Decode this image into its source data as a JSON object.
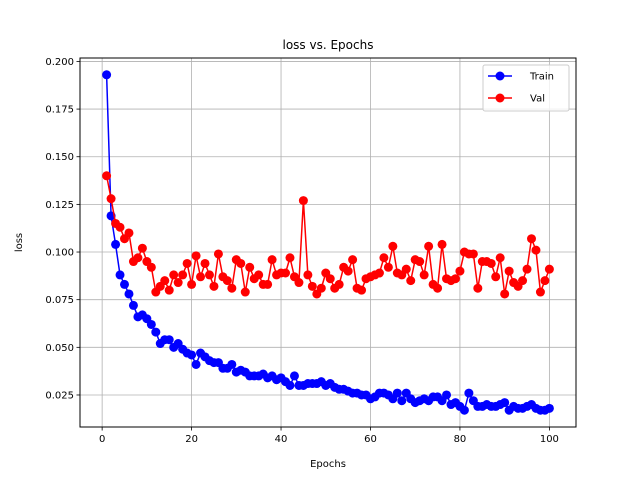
{
  "chart_data": {
    "type": "line",
    "title": "loss vs. Epochs",
    "xlabel": "Epochs",
    "ylabel": "loss",
    "xlim": [
      -4.95,
      105.95
    ],
    "ylim": [
      0.0082,
      0.2018
    ],
    "xticks": [
      0,
      20,
      40,
      60,
      80,
      100
    ],
    "yticks": [
      0.025,
      0.05,
      0.075,
      0.1,
      0.125,
      0.15,
      0.175,
      0.2
    ],
    "ytick_labels": [
      "0.025",
      "0.050",
      "0.075",
      "0.100",
      "0.125",
      "0.150",
      "0.175",
      "0.200"
    ],
    "grid": true,
    "legend_position": "top-right",
    "x": [
      1,
      2,
      3,
      4,
      5,
      6,
      7,
      8,
      9,
      10,
      11,
      12,
      13,
      14,
      15,
      16,
      17,
      18,
      19,
      20,
      21,
      22,
      23,
      24,
      25,
      26,
      27,
      28,
      29,
      30,
      31,
      32,
      33,
      34,
      35,
      36,
      37,
      38,
      39,
      40,
      41,
      42,
      43,
      44,
      45,
      46,
      47,
      48,
      49,
      50,
      51,
      52,
      53,
      54,
      55,
      56,
      57,
      58,
      59,
      60,
      61,
      62,
      63,
      64,
      65,
      66,
      67,
      68,
      69,
      70,
      71,
      72,
      73,
      74,
      75,
      76,
      77,
      78,
      79,
      80,
      81,
      82,
      83,
      84,
      85,
      86,
      87,
      88,
      89,
      90,
      91,
      92,
      93,
      94,
      95,
      96,
      97,
      98,
      99,
      100
    ],
    "series": [
      {
        "name": "Train",
        "color": "#0000ff",
        "values": [
          0.193,
          0.119,
          0.104,
          0.088,
          0.083,
          0.078,
          0.072,
          0.066,
          0.067,
          0.065,
          0.062,
          0.058,
          0.052,
          0.054,
          0.054,
          0.05,
          0.052,
          0.049,
          0.047,
          0.046,
          0.041,
          0.047,
          0.045,
          0.043,
          0.042,
          0.042,
          0.039,
          0.039,
          0.041,
          0.037,
          0.038,
          0.037,
          0.035,
          0.035,
          0.035,
          0.036,
          0.034,
          0.035,
          0.033,
          0.034,
          0.032,
          0.03,
          0.035,
          0.03,
          0.03,
          0.031,
          0.031,
          0.031,
          0.032,
          0.03,
          0.031,
          0.029,
          0.028,
          0.028,
          0.027,
          0.026,
          0.026,
          0.025,
          0.025,
          0.023,
          0.024,
          0.026,
          0.026,
          0.025,
          0.023,
          0.026,
          0.022,
          0.026,
          0.023,
          0.021,
          0.022,
          0.023,
          0.022,
          0.024,
          0.024,
          0.022,
          0.025,
          0.02,
          0.021,
          0.019,
          0.017,
          0.026,
          0.022,
          0.019,
          0.019,
          0.02,
          0.019,
          0.019,
          0.02,
          0.021,
          0.017,
          0.019,
          0.018,
          0.018,
          0.019,
          0.02,
          0.018,
          0.017,
          0.017,
          0.018
        ]
      },
      {
        "name": "Val",
        "color": "#ff0000",
        "values": [
          0.14,
          0.128,
          0.115,
          0.113,
          0.107,
          0.11,
          0.095,
          0.097,
          0.102,
          0.095,
          0.092,
          0.079,
          0.082,
          0.085,
          0.08,
          0.088,
          0.084,
          0.088,
          0.094,
          0.083,
          0.098,
          0.087,
          0.094,
          0.088,
          0.082,
          0.099,
          0.087,
          0.085,
          0.081,
          0.096,
          0.094,
          0.079,
          0.092,
          0.086,
          0.088,
          0.083,
          0.083,
          0.096,
          0.088,
          0.089,
          0.089,
          0.097,
          0.087,
          0.084,
          0.127,
          0.088,
          0.082,
          0.078,
          0.081,
          0.089,
          0.086,
          0.081,
          0.083,
          0.092,
          0.09,
          0.096,
          0.081,
          0.08,
          0.086,
          0.087,
          0.088,
          0.089,
          0.097,
          0.092,
          0.103,
          0.089,
          0.088,
          0.091,
          0.085,
          0.096,
          0.095,
          0.088,
          0.103,
          0.083,
          0.081,
          0.104,
          0.086,
          0.085,
          0.086,
          0.09,
          0.1,
          0.099,
          0.099,
          0.081,
          0.095,
          0.095,
          0.094,
          0.087,
          0.097,
          0.078,
          0.09,
          0.084,
          0.082,
          0.085,
          0.091,
          0.107,
          0.101,
          0.079,
          0.085,
          0.091
        ]
      }
    ]
  }
}
